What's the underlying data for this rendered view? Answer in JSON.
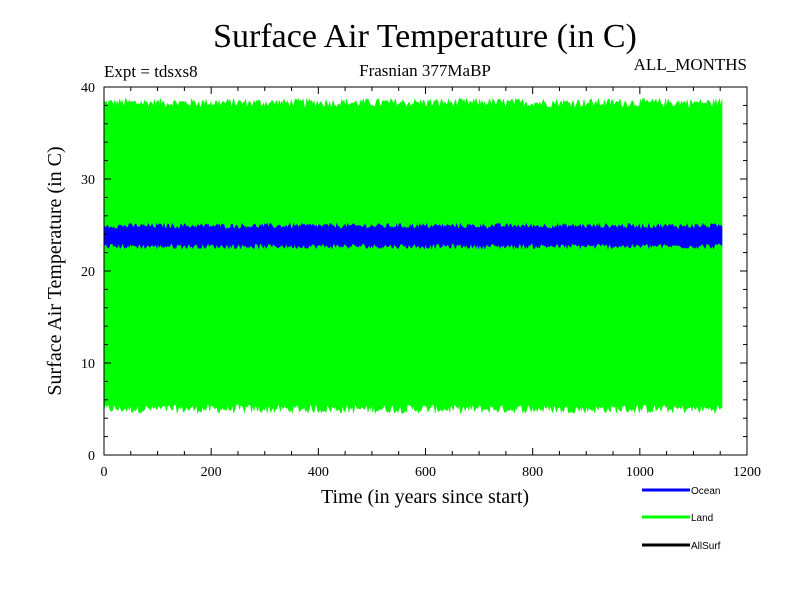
{
  "chart_data": {
    "type": "line",
    "title": "Surface Air Temperature (in C)",
    "subtitle_left": "Expt = tdsxs8",
    "subtitle_center": "Frasnian 377MaBP",
    "subtitle_right": "ALL_MONTHS",
    "xlabel": "Time (in years since start)",
    "ylabel": "Surface Air Temperature (in C)",
    "xlim": [
      0,
      1200
    ],
    "ylim": [
      0,
      40
    ],
    "xticks": [
      0,
      200,
      400,
      600,
      800,
      1000,
      1200
    ],
    "yticks": [
      0,
      10,
      20,
      30,
      40
    ],
    "x_data_range": [
      0,
      1155
    ],
    "grid": false,
    "legend_position": "bottom-right",
    "series": [
      {
        "name": "Ocean",
        "color": "#0000ff",
        "min_approx": 22.7,
        "max_approx": 24.9,
        "mean_approx": 23.8
      },
      {
        "name": "Land",
        "color": "#00ff00",
        "min_approx": 5.0,
        "max_approx": 38.3,
        "mean_approx": 21.7
      },
      {
        "name": "AllSurf",
        "color": "#000000"
      }
    ]
  }
}
